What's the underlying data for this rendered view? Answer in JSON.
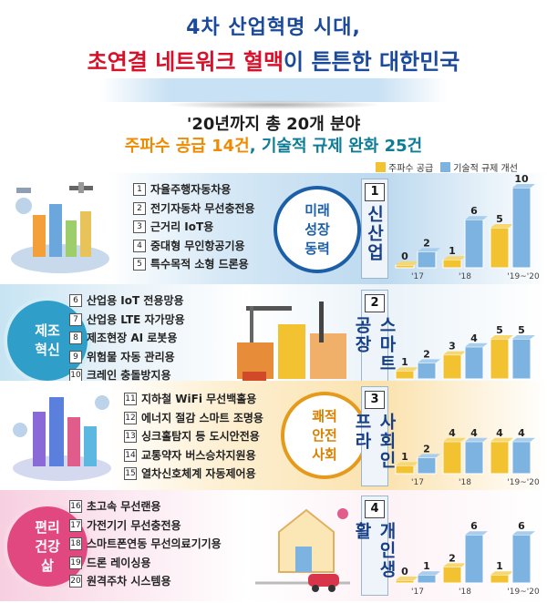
{
  "header": {
    "title_line1": "4차 산업혁명 시대,",
    "title_line2_red": "초연결 네트워크 혈맥",
    "title_line2_rest": "이 튼튼한 대한민국",
    "subtitle1": "'20년까지 총 20개 분야",
    "subtitle2_orange": "주파수 공급 14건",
    "subtitle2_rest": ", 기술적 규제 완화 25건"
  },
  "legend": {
    "supply": "주파수 공급",
    "regulation": "기술적 규제 개선"
  },
  "colors": {
    "supply": "#f2c230",
    "regulation": "#7db3e0",
    "navy": "#163f86"
  },
  "sections": [
    {
      "label": "미래\n성장\n동력",
      "number": "1",
      "category": "신산업",
      "items": [
        {
          "n": "1",
          "t": "자율주행자동차용"
        },
        {
          "n": "2",
          "t": "전기자동차 무선충전용"
        },
        {
          "n": "3",
          "t": "근거리 IoT용"
        },
        {
          "n": "4",
          "t": "중대형 무인항공기용"
        },
        {
          "n": "5",
          "t": "특수목적 소형 드론용"
        }
      ]
    },
    {
      "label": "제조\n혁신",
      "number": "2",
      "category": "스마트공장",
      "items": [
        {
          "n": "6",
          "t": "산업용 IoT 전용망용"
        },
        {
          "n": "7",
          "t": "산업용 LTE 자가망용"
        },
        {
          "n": "8",
          "t": "제조현장 AI 로봇용"
        },
        {
          "n": "9",
          "t": "위험물 자동 관리용"
        },
        {
          "n": "10",
          "t": "크레인 충돌방지용"
        }
      ]
    },
    {
      "label": "쾌적\n안전\n사회",
      "number": "3",
      "category": "사회인프라",
      "items": [
        {
          "n": "11",
          "t": "지하철 WiFi 무선백홀용"
        },
        {
          "n": "12",
          "t": "에너지 절감 스마트 조명용"
        },
        {
          "n": "13",
          "t": "싱크홀탐지 등 도시안전용"
        },
        {
          "n": "14",
          "t": "교통약자 버스승차지원용"
        },
        {
          "n": "15",
          "t": "열차신호체계 자동제어용"
        }
      ]
    },
    {
      "label": "편리\n건강\n삶",
      "number": "4",
      "category": "개인생활",
      "items": [
        {
          "n": "16",
          "t": "초고속 무선랜용"
        },
        {
          "n": "17",
          "t": "가전기기 무선충전용"
        },
        {
          "n": "18",
          "t": "스마트폰연동 무선의료기기용"
        },
        {
          "n": "19",
          "t": "드론 레이싱용"
        },
        {
          "n": "20",
          "t": "원격주차 시스템용"
        }
      ]
    }
  ],
  "chart_data": [
    {
      "type": "bar",
      "categories": [
        "'17",
        "'18",
        "'19~'20"
      ],
      "series": [
        {
          "name": "주파수 공급",
          "values": [
            0,
            1,
            5
          ]
        },
        {
          "name": "기술적 규제 개선",
          "values": [
            2,
            6,
            10
          ]
        }
      ]
    },
    {
      "type": "bar",
      "categories": [
        "'17",
        "'18",
        "'19~'20"
      ],
      "series": [
        {
          "name": "주파수 공급",
          "values": [
            1,
            3,
            5
          ]
        },
        {
          "name": "기술적 규제 개선",
          "values": [
            2,
            4,
            5
          ]
        }
      ]
    },
    {
      "type": "bar",
      "categories": [
        "'17",
        "'18",
        "'19~'20"
      ],
      "series": [
        {
          "name": "주파수 공급",
          "values": [
            1,
            4,
            4
          ]
        },
        {
          "name": "기술적 규제 개선",
          "values": [
            2,
            4,
            4
          ]
        }
      ]
    },
    {
      "type": "bar",
      "categories": [
        "'17",
        "'18",
        "'19~'20"
      ],
      "series": [
        {
          "name": "주파수 공급",
          "values": [
            0,
            2,
            1
          ]
        },
        {
          "name": "기술적 규제 개선",
          "values": [
            1,
            6,
            6
          ]
        }
      ]
    }
  ]
}
